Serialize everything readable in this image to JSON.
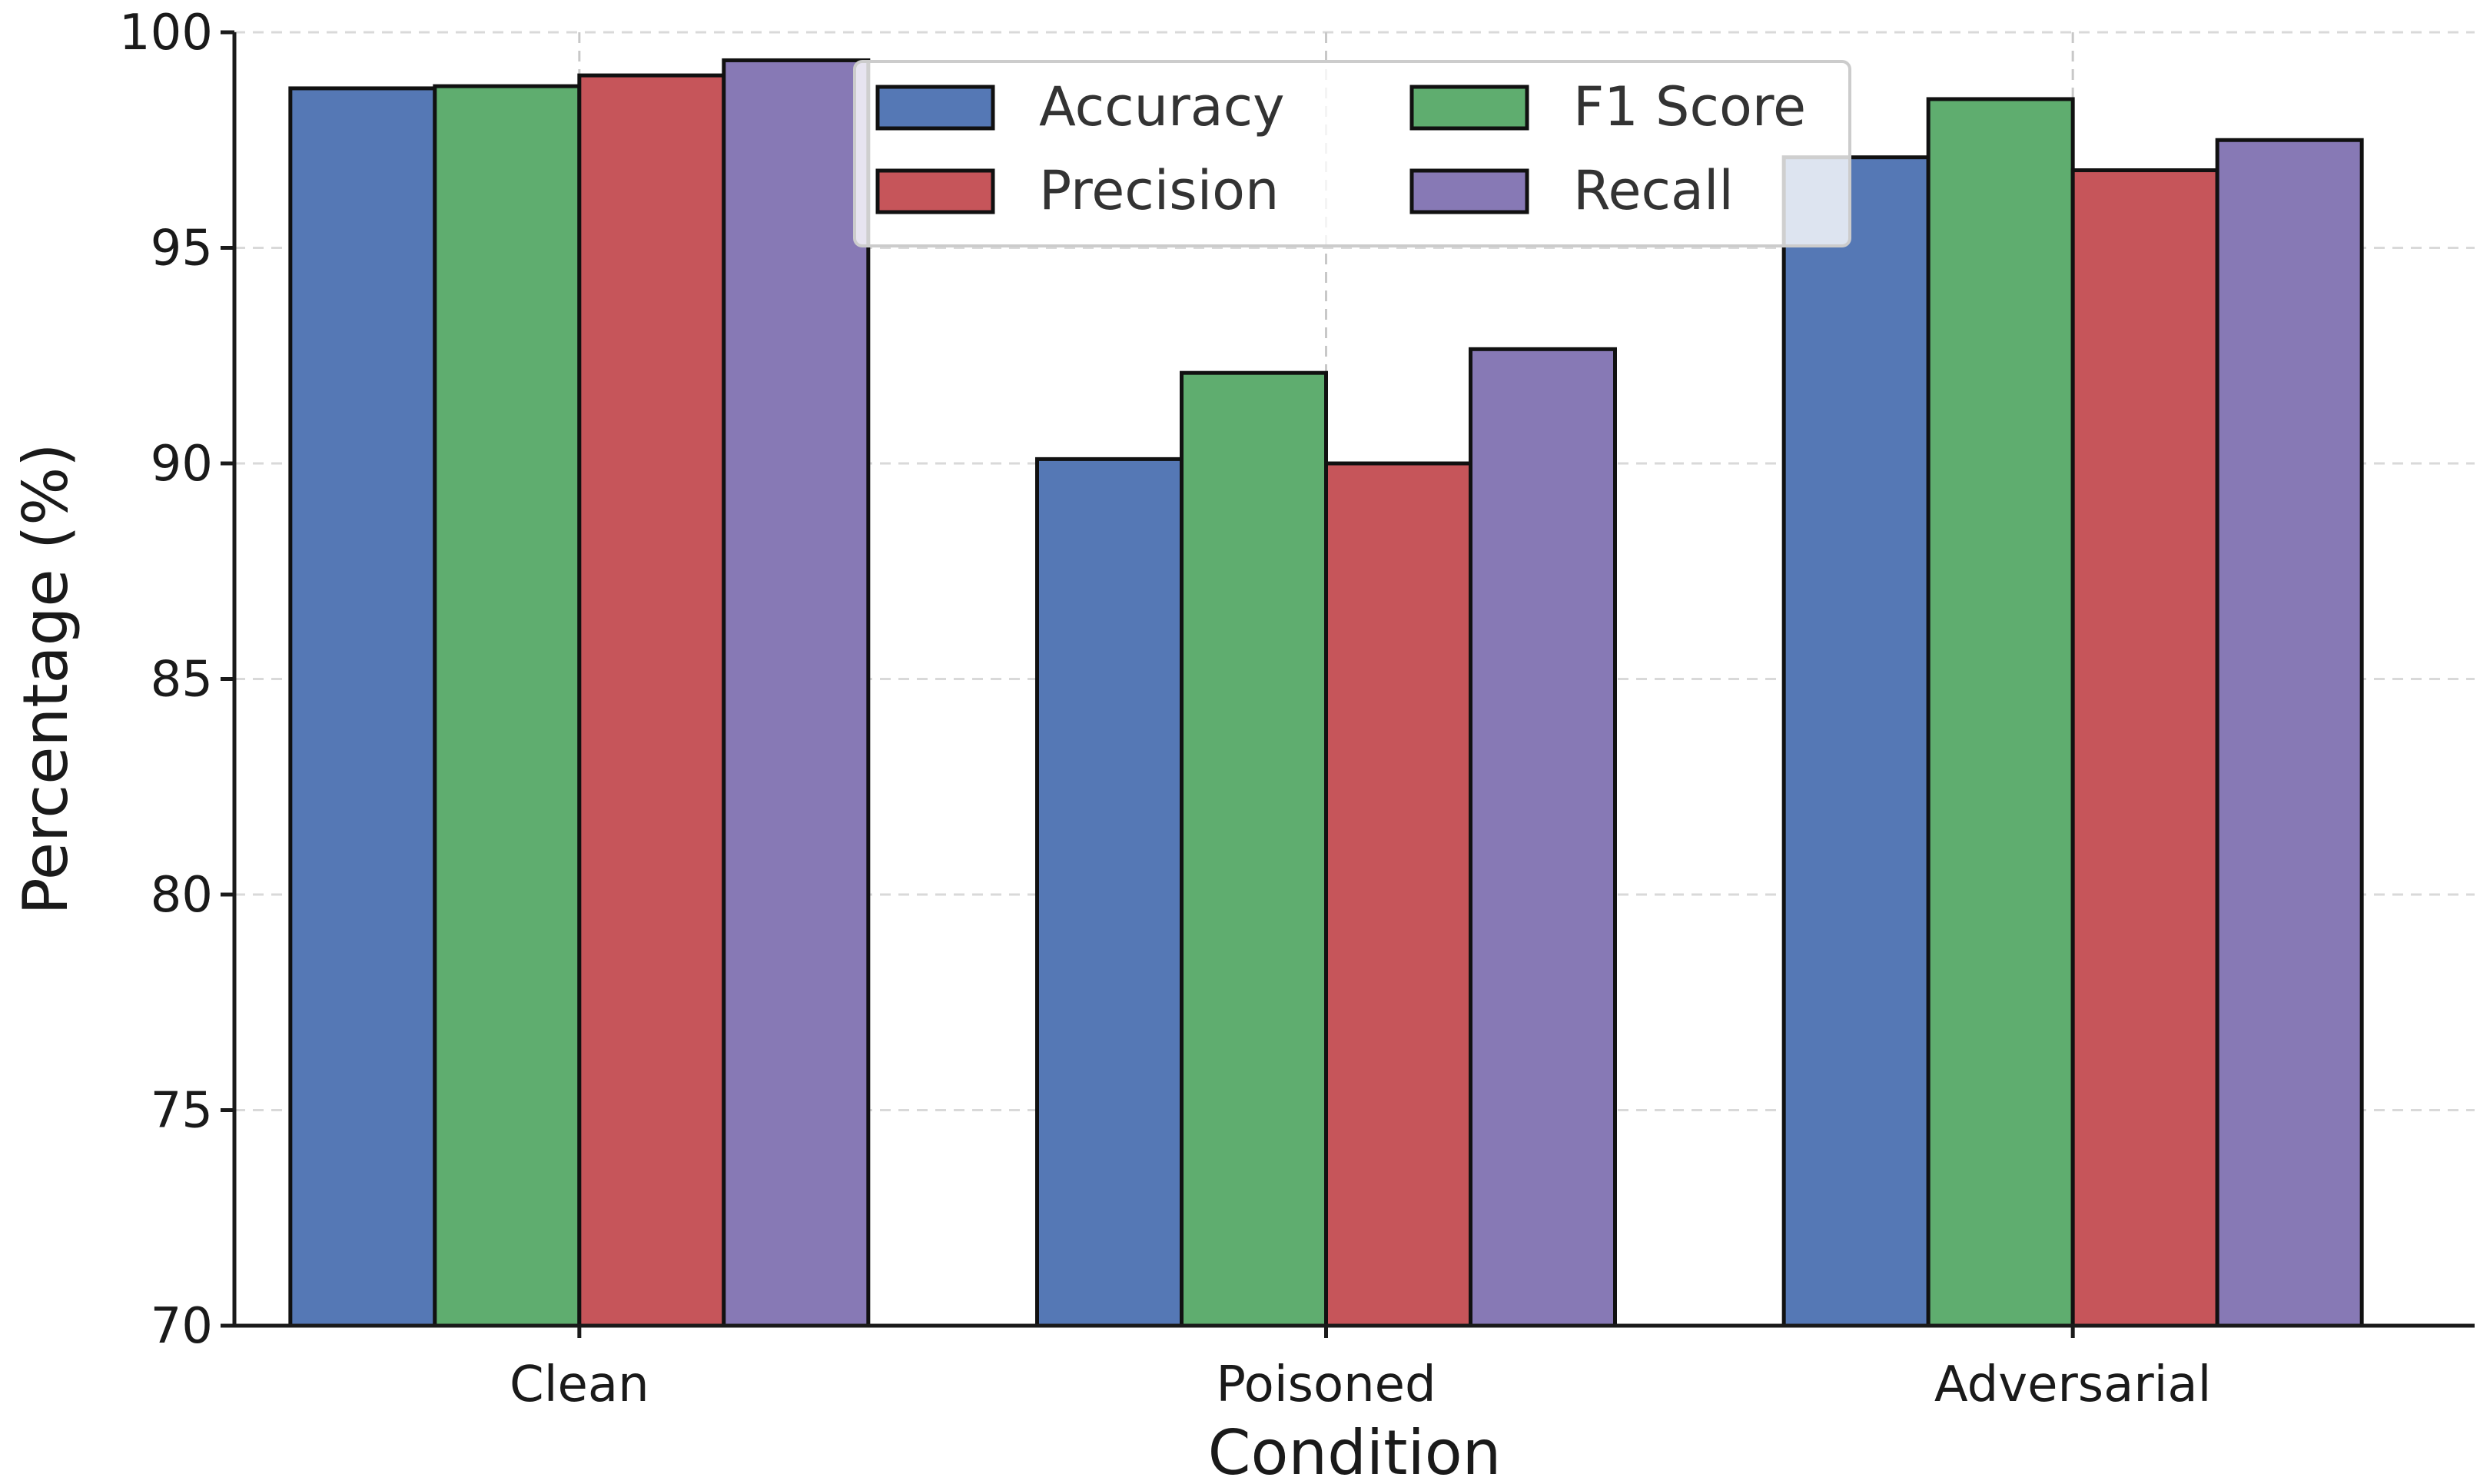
{
  "chart_data": {
    "type": "bar",
    "title": "",
    "xlabel": "Condition",
    "ylabel": "Percentage (%)",
    "ylim": [
      70,
      100
    ],
    "yticks": [
      "70",
      "75",
      "80",
      "85",
      "90",
      "95",
      "100"
    ],
    "categories": [
      "Clean",
      "Poisoned",
      "Adversarial"
    ],
    "series": [
      {
        "name": "Accuracy",
        "color": "#5578b5",
        "values": [
          98.7,
          90.1,
          97.1
        ]
      },
      {
        "name": "F1 Score",
        "color": "#5fad6f",
        "values": [
          98.75,
          92.1,
          98.45
        ]
      },
      {
        "name": "Precision",
        "color": "#c6555a",
        "values": [
          99.0,
          90.0,
          96.8
        ]
      },
      {
        "name": "Recall",
        "color": "#8779b5",
        "values": [
          99.35,
          92.65,
          97.5
        ]
      }
    ],
    "grid": true,
    "legend_position": "top-center"
  }
}
